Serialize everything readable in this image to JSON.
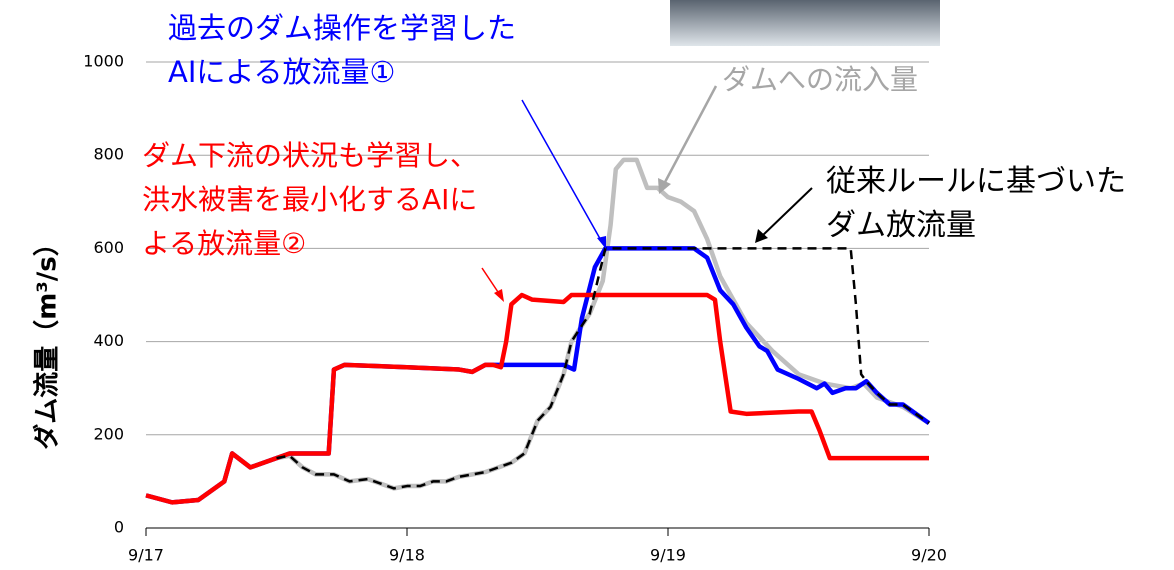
{
  "chart_data": {
    "type": "line",
    "y_label": "ダム流量（m³/s）",
    "xlim": [
      0,
      3
    ],
    "xticks": [
      {
        "value": 0,
        "label": "9/17"
      },
      {
        "value": 1,
        "label": "9/18"
      },
      {
        "value": 2,
        "label": "9/19"
      },
      {
        "value": 3,
        "label": "9/20"
      }
    ],
    "ylim": [
      0,
      1000
    ],
    "yticks": [
      0,
      200,
      400,
      600,
      800,
      1000
    ],
    "grid": true,
    "series": [
      {
        "name": "ダムへの流入量",
        "color": "#bfbfbf",
        "dash": false,
        "x": [
          0,
          0.1,
          0.2,
          0.3,
          0.33,
          0.4,
          0.5,
          0.55,
          0.6,
          0.65,
          0.72,
          0.78,
          0.85,
          0.9,
          0.95,
          1.0,
          1.05,
          1.1,
          1.15,
          1.2,
          1.3,
          1.4,
          1.45,
          1.5,
          1.55,
          1.6,
          1.63,
          1.7,
          1.75,
          1.78,
          1.8,
          1.83,
          1.88,
          1.92,
          1.96,
          2.0,
          2.05,
          2.1,
          2.15,
          2.2,
          2.25,
          2.3,
          2.4,
          2.5,
          2.6,
          2.7,
          2.75,
          2.8,
          2.9,
          3.0
        ],
        "values": [
          70,
          55,
          60,
          100,
          160,
          130,
          150,
          155,
          130,
          115,
          115,
          100,
          105,
          95,
          85,
          90,
          90,
          100,
          100,
          110,
          120,
          140,
          160,
          230,
          260,
          330,
          400,
          460,
          530,
          650,
          770,
          790,
          790,
          730,
          730,
          710,
          700,
          680,
          620,
          540,
          490,
          440,
          380,
          330,
          310,
          300,
          310,
          280,
          260,
          225
        ]
      },
      {
        "name": "従来ルールに基づいたダム放流量",
        "color": "#000000",
        "dash": true,
        "x": [
          0.5,
          0.55,
          0.6,
          0.65,
          0.72,
          0.78,
          0.85,
          0.9,
          0.95,
          1.0,
          1.05,
          1.1,
          1.15,
          1.2,
          1.3,
          1.4,
          1.45,
          1.5,
          1.55,
          1.6,
          1.63,
          1.7,
          1.76,
          2.7,
          2.72,
          2.74,
          2.76,
          2.8,
          2.85,
          2.9,
          3.0
        ],
        "values": [
          150,
          155,
          130,
          115,
          115,
          100,
          105,
          95,
          85,
          90,
          90,
          100,
          100,
          110,
          120,
          140,
          160,
          230,
          260,
          330,
          400,
          460,
          600,
          600,
          480,
          330,
          315,
          290,
          265,
          265,
          225
        ]
      },
      {
        "name": "過去のダム操作を学習したAIによる放流量①",
        "color": "#0000ff",
        "dash": false,
        "x": [
          0,
          0.1,
          0.2,
          0.3,
          0.33,
          0.4,
          0.5,
          0.55,
          0.7,
          0.72,
          0.76,
          1.0,
          1.2,
          1.25,
          1.3,
          1.4,
          1.6,
          1.64,
          1.67,
          1.72,
          1.76,
          2.1,
          2.15,
          2.2,
          2.25,
          2.3,
          2.35,
          2.38,
          2.42,
          2.5,
          2.57,
          2.6,
          2.63,
          2.68,
          2.72,
          2.76,
          2.8,
          2.85,
          2.9,
          3.0
        ],
        "values": [
          70,
          55,
          60,
          100,
          160,
          130,
          150,
          160,
          160,
          340,
          350,
          345,
          340,
          335,
          350,
          350,
          350,
          340,
          450,
          560,
          600,
          600,
          580,
          510,
          480,
          430,
          390,
          380,
          340,
          320,
          300,
          310,
          290,
          300,
          300,
          315,
          290,
          265,
          265,
          225
        ]
      },
      {
        "name": "ダム下流の状況も学習し、洪水被害を最小化するAIによる放流量②",
        "color": "#ff0000",
        "dash": false,
        "x": [
          0,
          0.1,
          0.2,
          0.3,
          0.33,
          0.4,
          0.5,
          0.55,
          0.7,
          0.72,
          0.76,
          1.0,
          1.2,
          1.25,
          1.3,
          1.33,
          1.36,
          1.38,
          1.4,
          1.44,
          1.48,
          1.6,
          1.63,
          2.15,
          2.18,
          2.2,
          2.24,
          2.3,
          2.5,
          2.55,
          2.58,
          2.62,
          2.7,
          3.0
        ],
        "values": [
          70,
          55,
          60,
          100,
          160,
          130,
          150,
          160,
          160,
          340,
          350,
          345,
          340,
          335,
          350,
          350,
          345,
          400,
          480,
          500,
          490,
          485,
          500,
          500,
          490,
          400,
          250,
          245,
          250,
          250,
          210,
          150,
          150,
          150
        ]
      }
    ]
  }
}
